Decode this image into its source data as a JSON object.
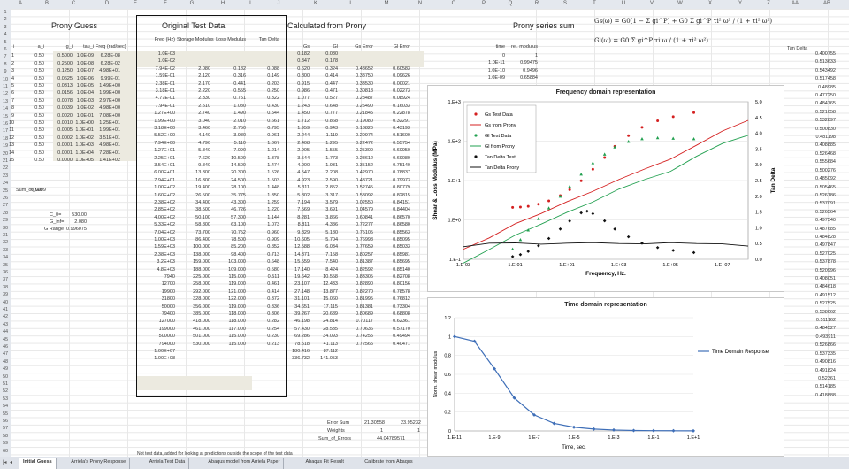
{
  "column_headers": [
    "A",
    "B",
    "C",
    "D",
    "E",
    "F",
    "G",
    "H",
    "I",
    "J",
    "K",
    "L",
    "M",
    "N",
    "O",
    "P",
    "Q",
    "R",
    "S",
    "T",
    "U",
    "V",
    "W",
    "X",
    "Y",
    "Z",
    "AA",
    "AB"
  ],
  "row_numbers": [
    "1",
    "2",
    "3",
    "4",
    "5",
    "6",
    "7",
    "8",
    "9",
    "10",
    "11",
    "12",
    "13",
    "14",
    "15",
    "16",
    "17",
    "18",
    "19",
    "20",
    "21",
    "22",
    "23",
    "24",
    "25",
    "26",
    "27",
    "28",
    "29",
    "30",
    "31",
    "32",
    "33",
    "34",
    "35",
    "36",
    "37",
    "38",
    "39",
    "40",
    "41",
    "42",
    "43",
    "44",
    "45",
    "46",
    "47",
    "48",
    "49",
    "50",
    "51",
    "52",
    "53",
    "54",
    "55",
    "56",
    "57",
    "58",
    "59",
    "60"
  ],
  "headings": {
    "prony_guess": "Prony Guess",
    "original_test_data": "Original Test Data",
    "calculated_from_prony": "Calculated from Prony",
    "prony_series_sum": "Prony series sum",
    "tan_delta_right": "Tan Delta"
  },
  "left_table": {
    "headers": [
      "i",
      "a_i",
      "g_i",
      "tau_i",
      "Freq (rad/sec)"
    ],
    "rows": [
      [
        "1",
        "0.50",
        "0.5000",
        "1.0E-09",
        "6.28E-08"
      ],
      [
        "2",
        "0.50",
        "0.2500",
        "1.0E-08",
        "6.28E-02"
      ],
      [
        "3",
        "0.50",
        "0.1250",
        "1.0E-07",
        "4.98E+01"
      ],
      [
        "4",
        "0.50",
        "0.0625",
        "1.0E-06",
        "9.99E-01"
      ],
      [
        "5",
        "0.50",
        "0.0313",
        "1.0E-05",
        "1.49E+00"
      ],
      [
        "6",
        "0.50",
        "0.0156",
        "1.0E-04",
        "1.99E+00"
      ],
      [
        "7",
        "0.50",
        "0.0078",
        "1.0E-03",
        "2.97E+00"
      ],
      [
        "8",
        "0.50",
        "0.0039",
        "1.0E-02",
        "4.98E+00"
      ],
      [
        "9",
        "0.50",
        "0.0020",
        "1.0E-01",
        "7.08E+00"
      ],
      [
        "10",
        "0.50",
        "0.0010",
        "1.0E+00",
        "1.25E+01"
      ],
      [
        "11",
        "0.50",
        "0.0005",
        "1.0E+01",
        "1.99E+01"
      ],
      [
        "12",
        "0.50",
        "0.0002",
        "1.0E+02",
        "3.51E+01"
      ],
      [
        "13",
        "0.50",
        "0.0001",
        "1.0E+03",
        "4.98E+01"
      ],
      [
        "14",
        "0.50",
        "0.0001",
        "1.0E+04",
        "7.28E+01"
      ],
      [
        "15",
        "0.50",
        "0.0000",
        "1.0E+05",
        "1.41E+02"
      ]
    ],
    "sum_label": "Sum_of_Gs",
    "sum_value": "0.9999",
    "c0_label": "C_0=",
    "c0_value": "530.00",
    "g_inf_label": "G_inf=",
    "g_inf_value": "2.080",
    "g_range_label": "G Range",
    "g_range_value": "0.996075"
  },
  "original_table": {
    "headers": [
      "Freq (Hz)",
      "Storage Modulus",
      "Loss Modulus",
      "Tan Delta"
    ],
    "rows": [
      [
        "1.0E-03",
        "",
        "",
        ""
      ],
      [
        "1.0E-02",
        "",
        "",
        ""
      ],
      [
        "7.94E-02",
        "2.080",
        "0.182",
        "0.088"
      ],
      [
        "1.59E-01",
        "2.120",
        "0.316",
        "0.149"
      ],
      [
        "2.38E-01",
        "2.170",
        "0.441",
        "0.203"
      ],
      [
        "3.18E-01",
        "2.220",
        "0.555",
        "0.250"
      ],
      [
        "4.77E-01",
        "2.330",
        "0.751",
        "0.322"
      ],
      [
        "7.94E-01",
        "2.510",
        "1.080",
        "0.430"
      ],
      [
        "1.27E+00",
        "2.740",
        "1.490",
        "0.544"
      ],
      [
        "1.99E+00",
        "3.040",
        "2.010",
        "0.661"
      ],
      [
        "3.18E+00",
        "3.460",
        "2.750",
        "0.795"
      ],
      [
        "5.52E+00",
        "4.140",
        "3.980",
        "0.961"
      ],
      [
        "7.94E+00",
        "4.790",
        "5.110",
        "1.067"
      ],
      [
        "1.27E+01",
        "5.840",
        "7.090",
        "1.214"
      ],
      [
        "2.25E+01",
        "7.620",
        "10.500",
        "1.378"
      ],
      [
        "3.54E+01",
        "9.840",
        "14.500",
        "1.474"
      ],
      [
        "6.00E+01",
        "13.300",
        "20.300",
        "1.526"
      ],
      [
        "7.94E+01",
        "16.300",
        "24.500",
        "1.503"
      ],
      [
        "1.00E+02",
        "19.400",
        "28.100",
        "1.448"
      ],
      [
        "1.60E+02",
        "26.500",
        "35.775",
        "1.350"
      ],
      [
        "2.38E+02",
        "34.400",
        "43.300",
        "1.259"
      ],
      [
        "2.85E+02",
        "38.500",
        "46.726",
        "1.220"
      ],
      [
        "4.00E+02",
        "50.100",
        "57.300",
        "1.144"
      ],
      [
        "5.33E+02",
        "58.800",
        "63.100",
        "1.073"
      ],
      [
        "7.04E+02",
        "73.700",
        "70.752",
        "0.960"
      ],
      [
        "1.00E+03",
        "86.400",
        "78.500",
        "0.909"
      ],
      [
        "1.59E+03",
        "100.000",
        "85.200",
        "0.852"
      ],
      [
        "2.38E+03",
        "138.000",
        "98.400",
        "0.713"
      ],
      [
        "3.2E+03",
        "159.000",
        "103.000",
        "0.648"
      ],
      [
        "4.8E+03",
        "188.000",
        "109.000",
        "0.580"
      ],
      [
        "7940",
        "225.000",
        "115.000",
        "0.511"
      ],
      [
        "12700",
        "258.000",
        "119.000",
        "0.461"
      ],
      [
        "19900",
        "292.000",
        "121.000",
        "0.414"
      ],
      [
        "31800",
        "328.000",
        "122.000",
        "0.372"
      ],
      [
        "50000",
        "356.000",
        "119.000",
        "0.336"
      ],
      [
        "79400",
        "385.000",
        "118.000",
        "0.306"
      ],
      [
        "127000",
        "418.000",
        "118.000",
        "0.282"
      ],
      [
        "199000",
        "461.000",
        "117.000",
        "0.254"
      ],
      [
        "500000",
        "501.000",
        "115.000",
        "0.230"
      ],
      [
        "794000",
        "530.000",
        "115.000",
        "0.213"
      ],
      [
        "1.00E+07",
        "",
        "",
        ""
      ],
      [
        "1.00E+08",
        "",
        "",
        ""
      ]
    ]
  },
  "calc_table": {
    "headers": [
      "Gs",
      "Gl",
      "Gs Error",
      "Gl Error"
    ],
    "rows": [
      [
        "0.182",
        "0.080",
        "",
        ""
      ],
      [
        "0.347",
        "0.178",
        "",
        ""
      ],
      [
        "0.620",
        "0.324",
        "0.48652",
        "0.60583"
      ],
      [
        "0.800",
        "0.414",
        "0.38750",
        "0.09626"
      ],
      [
        "0.915",
        "0.447",
        "0.33530",
        "0.00021"
      ],
      [
        "0.986",
        "0.471",
        "0.30818",
        "0.02273"
      ],
      [
        "1.077",
        "0.527",
        "0.28487",
        "0.08924"
      ],
      [
        "1.243",
        "0.648",
        "0.25490",
        "0.16033"
      ],
      [
        "1.450",
        "0.777",
        "0.21845",
        "0.22878"
      ],
      [
        "1.712",
        "0.868",
        "0.19080",
        "0.32291"
      ],
      [
        "1.959",
        "0.943",
        "0.18820",
        "0.43193"
      ],
      [
        "2.244",
        "1.119",
        "0.20974",
        "0.51600"
      ],
      [
        "2.408",
        "1.295",
        "0.22472",
        "0.55754"
      ],
      [
        "2.905",
        "1.555",
        "0.25300",
        "0.60950"
      ],
      [
        "3.544",
        "1.773",
        "0.28612",
        "0.69080"
      ],
      [
        "4.000",
        "1.931",
        "0.35152",
        "0.75140"
      ],
      [
        "4.547",
        "2.208",
        "0.42970",
        "0.78837"
      ],
      [
        "4.923",
        "2.590",
        "0.48721",
        "0.79973"
      ],
      [
        "5.311",
        "2.852",
        "0.52745",
        "0.80779"
      ],
      [
        "5.802",
        "3.317",
        "0.58092",
        "0.82815"
      ],
      [
        "7.194",
        "3.579",
        "0.02550",
        "0.84151"
      ],
      [
        "7.569",
        "3.691",
        "0.04579",
        "0.84404"
      ],
      [
        "8.281",
        "3.866",
        "0.60841",
        "0.86570"
      ],
      [
        "8.811",
        "4.386",
        "0.72277",
        "0.86580"
      ],
      [
        "9.829",
        "5.180",
        "0.75105",
        "0.85563"
      ],
      [
        "10.605",
        "5.704",
        "0.76998",
        "0.85095"
      ],
      [
        "12.588",
        "6.034",
        "0.77659",
        "0.85033"
      ],
      [
        "14.371",
        "7.158",
        "0.80257",
        "0.85981"
      ],
      [
        "15.559",
        "7.540",
        "0.81387",
        "0.85695"
      ],
      [
        "17.140",
        "8.424",
        "0.82592",
        "0.85140"
      ],
      [
        "19.642",
        "10.558",
        "0.83305",
        "0.82708"
      ],
      [
        "23.107",
        "12.433",
        "0.82890",
        "0.80156"
      ],
      [
        "27.148",
        "13.877",
        "0.82270",
        "0.78578"
      ],
      [
        "31.101",
        "15.060",
        "0.81995",
        "0.76812"
      ],
      [
        "34.651",
        "17.115",
        "0.81381",
        "0.73304"
      ],
      [
        "39.267",
        "20.689",
        "0.80689",
        "0.68808"
      ],
      [
        "46.198",
        "24.814",
        "0.70117",
        "0.62361"
      ],
      [
        "57.430",
        "28.535",
        "0.70636",
        "0.57170"
      ],
      [
        "69.286",
        "34.093",
        "0.74255",
        "0.49494"
      ],
      [
        "78.518",
        "41.113",
        "0.72565",
        "0.40471"
      ],
      [
        "180.416",
        "87.112",
        "",
        ""
      ],
      [
        "336.732",
        "141.053",
        "",
        ""
      ]
    ],
    "error_sum_label": "Error Sum",
    "error_sum_values": [
      "21.30558",
      "23.95232"
    ],
    "weights_label": "Weights",
    "weights_values": [
      "1",
      "1"
    ],
    "sum_errors_label": "Sum_of_Errors",
    "sum_errors_value": "44.04789571"
  },
  "prony_sum_table": {
    "headers": [
      "time",
      "rel. modulus"
    ],
    "rows": [
      [
        "0",
        "1"
      ],
      [
        "1.0E-11",
        "0.99475"
      ],
      [
        "1.0E-10",
        "0.9496"
      ],
      [
        "1.0E-09",
        "0.65884"
      ]
    ]
  },
  "equations": {
    "gs": "Gs(ω) = G0[1 − Σ gi^P] + G0 Σ gi^P τi² ω² / (1 + τi² ω²)",
    "gl": "Gl(ω) = G0 Σ gi^P τi ω / (1 + τi² ω²)"
  },
  "tan_delta_column": [
    "0.400755",
    "0.513633",
    "0.543492",
    "0.517458",
    "0.48985",
    "0.477250",
    "0.484765",
    "0.521058",
    "0.532897",
    "0.500830",
    "0.481198",
    "0.408885",
    "0.526468",
    "0.555684",
    "0.500276",
    "0.485092",
    "0.505465",
    "0.526186",
    "0.537091",
    "0.526564",
    "0.497540",
    "0.487685",
    "0.484828",
    "0.497847",
    "0.527025",
    "0.537878",
    "0.520996",
    "0.408051",
    "0.484618",
    "0.491512",
    "0.527525",
    "0.538062",
    "0.511162",
    "0.484527",
    "0.493911",
    "0.526866",
    "0.537335",
    "0.490816",
    "0.491824",
    "0.52361",
    "0.514185",
    "0.418888"
  ],
  "footnote": "Not test data, added for looking at predictions outside the scope of the test data",
  "chart_data": [
    {
      "type": "scatter",
      "title": "Frequency domain representation",
      "xlabel": "Frequency, Hz.",
      "ylabel": "Shear & Loss Modulus (MPa)",
      "y2label": "Tan Delta",
      "x_scale": "log",
      "y_scale": "log",
      "xlim": [
        0.001,
        100000000
      ],
      "ylim": [
        0.1,
        1000
      ],
      "y2lim": [
        0,
        5
      ],
      "x_ticks": [
        "1.E-03",
        "1.E-01",
        "1.E+01",
        "1.E+03",
        "1.E+05",
        "1.E+07"
      ],
      "x_tick_values": [
        0.001,
        0.1,
        10,
        1000,
        100000,
        10000000
      ],
      "y_ticks": [
        "1.E-1",
        "1.E+0",
        "1.E+1",
        "1.E+2",
        "1.E+3"
      ],
      "y_tick_values": [
        0.1,
        1,
        10,
        100,
        1000
      ],
      "y2_ticks": [
        "0.0",
        "0.5",
        "1.0",
        "1.5",
        "2.0",
        "2.5",
        "3.0",
        "3.5",
        "4.0",
        "4.5",
        "5.0"
      ],
      "legend_position": "top-left",
      "series": [
        {
          "name": "Gs Test Data",
          "kind": "points",
          "color": "#d42020",
          "marker": "dot",
          "x": [
            0.0794,
            0.159,
            0.318,
            0.794,
            1.99,
            5.52,
            12.7,
            35.4,
            100,
            285,
            704,
            2380,
            7940,
            31800,
            127000,
            794000
          ],
          "y": [
            2.08,
            2.12,
            2.22,
            2.51,
            3.04,
            4.14,
            5.84,
            9.84,
            19.4,
            38.5,
            73.7,
            138,
            225,
            328,
            418,
            530
          ]
        },
        {
          "name": "Gs from Prony",
          "kind": "line",
          "color": "#d42020",
          "x": [
            0.001,
            0.01,
            0.1,
            1,
            10,
            100,
            1000,
            10000,
            100000,
            1000000,
            10000000,
            100000000
          ],
          "y": [
            0.18,
            0.35,
            0.8,
            1.45,
            2.9,
            5.3,
            10.6,
            19.6,
            35,
            78.5,
            180,
            337
          ]
        },
        {
          "name": "Gl Test Data",
          "kind": "points",
          "color": "#22a050",
          "marker": "triangle",
          "x": [
            0.0794,
            0.159,
            0.318,
            0.794,
            1.99,
            5.52,
            12.7,
            35.4,
            100,
            285,
            704,
            2380,
            7940,
            31800,
            127000,
            794000
          ],
          "y": [
            0.182,
            0.316,
            0.555,
            1.08,
            2.01,
            3.98,
            7.09,
            14.5,
            28.1,
            46.7,
            70.8,
            98.4,
            115,
            122,
            118,
            115
          ]
        },
        {
          "name": "Gl from Prony",
          "kind": "line",
          "color": "#22a050",
          "x": [
            0.001,
            0.01,
            0.1,
            1,
            10,
            100,
            1000,
            10000,
            100000,
            1000000,
            10000000,
            100000000
          ],
          "y": [
            0.08,
            0.178,
            0.41,
            0.78,
            1.56,
            2.85,
            6.03,
            10.6,
            17.1,
            41.1,
            87.1,
            141
          ]
        },
        {
          "name": "Tan Delta Test",
          "kind": "points",
          "color": "#111111",
          "marker": "diamond",
          "axis": "y2",
          "x": [
            0.0794,
            0.159,
            0.318,
            0.794,
            1.99,
            5.52,
            12.7,
            35.4,
            60,
            100,
            285,
            704,
            2380,
            7940,
            31800,
            127000,
            794000
          ],
          "y": [
            0.088,
            0.149,
            0.25,
            0.43,
            0.661,
            0.961,
            1.214,
            1.474,
            1.526,
            1.448,
            1.22,
            0.96,
            0.713,
            0.511,
            0.372,
            0.282,
            0.213
          ]
        },
        {
          "name": "Tan Delta Prony",
          "kind": "line",
          "color": "#111111",
          "axis": "y2",
          "x": [
            0.001,
            0.01,
            0.1,
            1,
            10,
            100,
            1000,
            10000,
            100000,
            1000000,
            10000000,
            100000000
          ],
          "y": [
            0.4,
            0.51,
            0.52,
            0.48,
            0.51,
            0.53,
            0.5,
            0.49,
            0.53,
            0.5,
            0.49,
            0.42
          ]
        }
      ]
    },
    {
      "type": "line",
      "title": "Time domain representation",
      "xlabel": "Time, sec.",
      "ylabel": "Norm. shear modulus",
      "x_scale": "log",
      "xlim": [
        1e-11,
        10
      ],
      "ylim": [
        0,
        1.2
      ],
      "x_ticks": [
        "1.E-11",
        "1.E-9",
        "1.E-7",
        "1.E-5",
        "1.E-3",
        "1.E-1",
        "1.E+1"
      ],
      "x_tick_values": [
        1e-11,
        1e-09,
        1e-07,
        1e-05,
        0.001,
        0.1,
        10
      ],
      "y_ticks": [
        "0",
        "0.2",
        "0.4",
        "0.6",
        "0.8",
        "1",
        "1.2"
      ],
      "y_tick_values": [
        0,
        0.2,
        0.4,
        0.6,
        0.8,
        1,
        1.2
      ],
      "legend_position": "right",
      "series": [
        {
          "name": "Time Domain Response",
          "color": "#3f6fb8",
          "x": [
            1e-11,
            1e-10,
            1e-09,
            1e-08,
            1e-07,
            1e-06,
            1e-05,
            0.0001,
            0.001,
            0.01,
            0.1,
            1,
            10
          ],
          "y": [
            1,
            0.95,
            0.66,
            0.35,
            0.17,
            0.08,
            0.04,
            0.02,
            0.01,
            0.005,
            0.003,
            0.002,
            0.001
          ]
        }
      ]
    }
  ],
  "sheet_tabs": [
    "Initial Guess",
    "Arriela's Prony Response",
    "Arriela Test Data",
    "Abaqus model from Arriela Paper",
    "Abaqus Fit Result",
    "Calibrate from Abaqus"
  ],
  "active_tab_index": 0
}
